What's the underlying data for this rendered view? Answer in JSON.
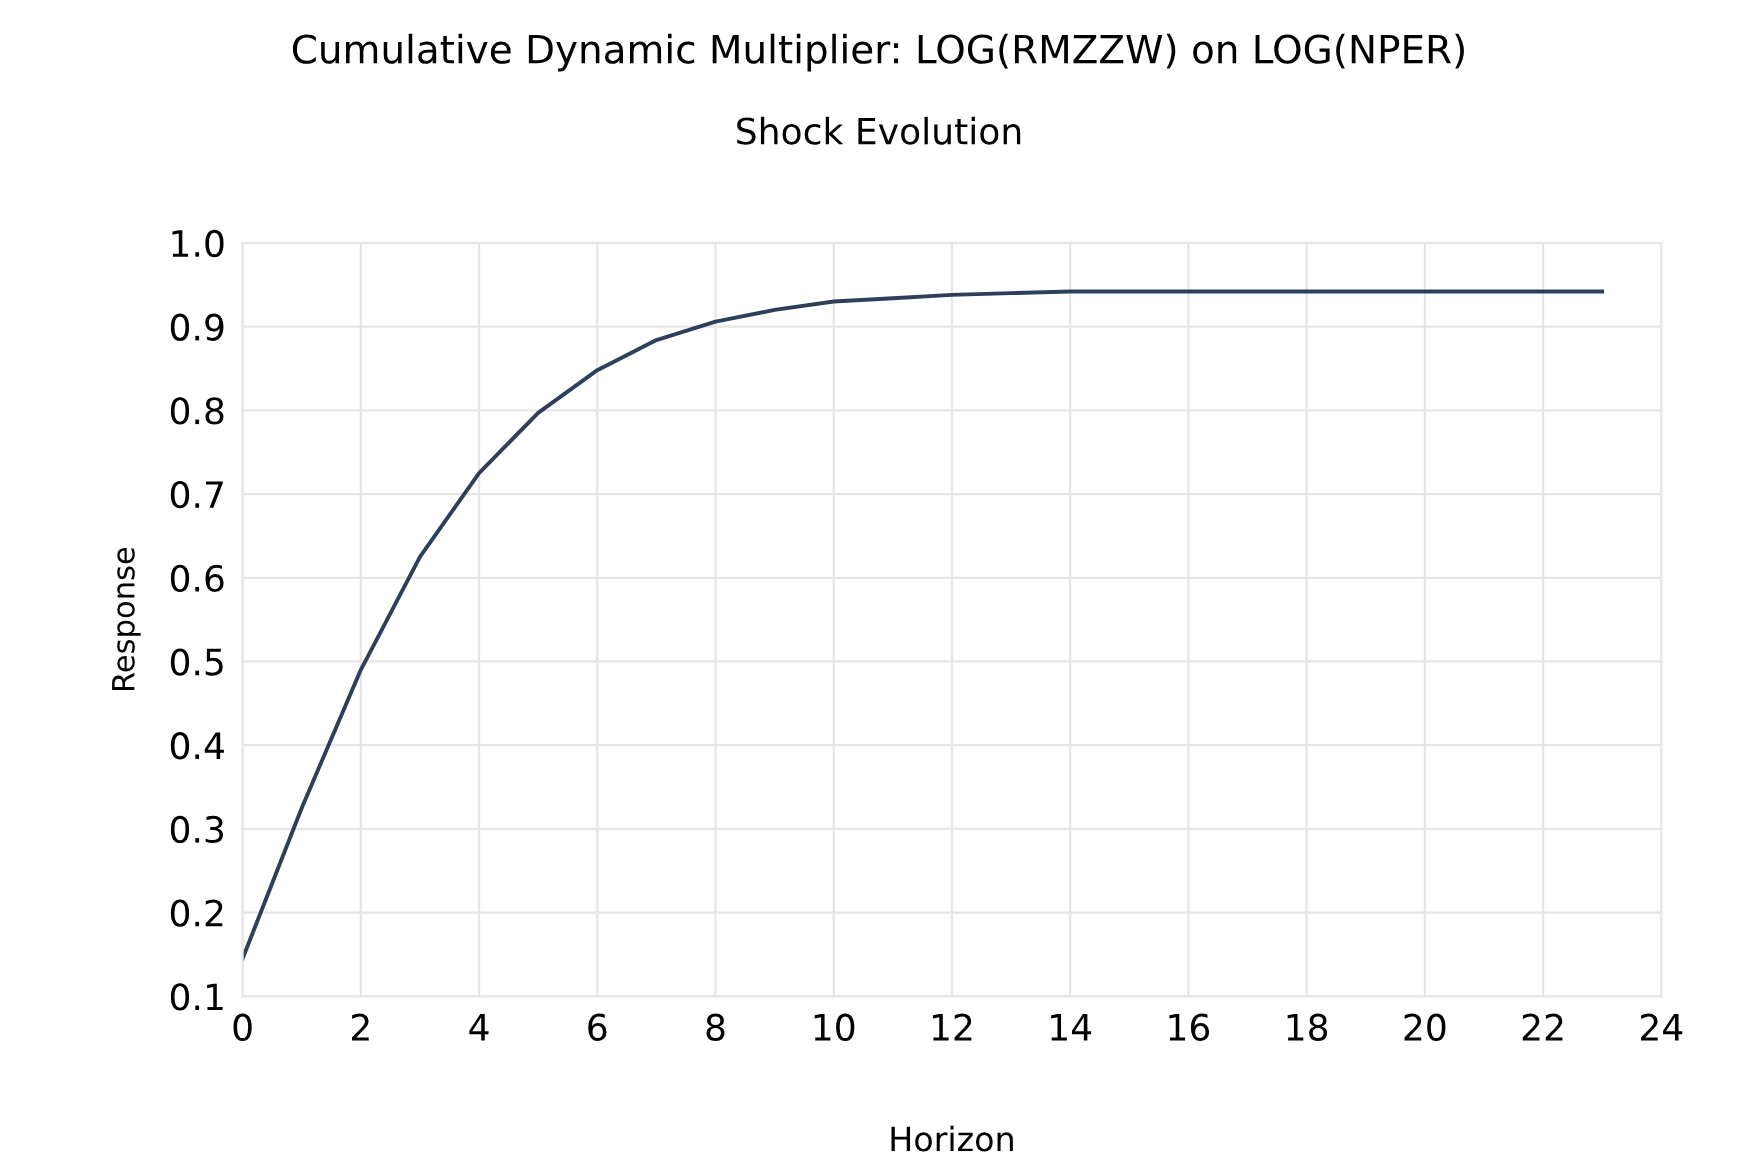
{
  "chart_data": {
    "type": "line",
    "title": "Cumulative Dynamic Multiplier: LOG(RMZZW) on LOG(NPER)",
    "subtitle": "Shock Evolution",
    "xlabel": "Horizon",
    "ylabel": "Response",
    "x": [
      0,
      1,
      2,
      3,
      4,
      5,
      6,
      7,
      8,
      9,
      10,
      11,
      12,
      13,
      14,
      15,
      16,
      17,
      18,
      19,
      20,
      21,
      22,
      23
    ],
    "series": [
      {
        "color": "#2e3f5c",
        "values": [
          0.145,
          0.325,
          0.49,
          0.625,
          0.725,
          0.797,
          0.848,
          0.884,
          0.906,
          0.92,
          0.93,
          0.934,
          0.938,
          0.94,
          0.942,
          0.942,
          0.942,
          0.942,
          0.942,
          0.942,
          0.942,
          0.942,
          0.942,
          0.942
        ]
      }
    ],
    "xlim": [
      0,
      24
    ],
    "xticks": [
      0,
      2,
      4,
      6,
      8,
      10,
      12,
      14,
      16,
      18,
      20,
      22,
      24
    ],
    "ylim": [
      0.1,
      1.0
    ],
    "yticks": [
      {
        "value": 0.1,
        "label": "0.1"
      },
      {
        "value": 0.2,
        "label": "0.2"
      },
      {
        "value": 0.3,
        "label": "0.3"
      },
      {
        "value": 0.4,
        "label": "0.4"
      },
      {
        "value": 0.5,
        "label": "0.5"
      },
      {
        "value": 0.6,
        "label": "0.6"
      },
      {
        "value": 0.7,
        "label": "0.7"
      },
      {
        "value": 0.8,
        "label": "0.8"
      },
      {
        "value": 0.9,
        "label": "0.9"
      },
      {
        "value": 1.0,
        "label": "1.0"
      }
    ],
    "grid": true,
    "marker": "none",
    "line_style": "solid"
  }
}
